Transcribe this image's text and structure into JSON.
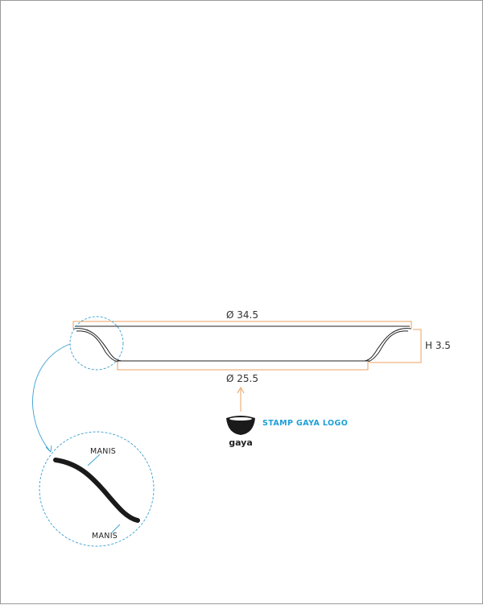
{
  "dimensions": {
    "top_diameter": "Ø 34.5",
    "bottom_diameter": "Ø 25.5",
    "height": "H 3.5"
  },
  "detail": {
    "label_top": "MANIS",
    "label_bottom": "MANIS"
  },
  "stamp": {
    "label": "STAMP GAYA LOGO",
    "logo_text": "gaya"
  },
  "colors": {
    "dimension_line": "#e8a060",
    "callout": "#3a9fd0",
    "outline": "#222222",
    "stamp_label": "#1e9fd6"
  }
}
